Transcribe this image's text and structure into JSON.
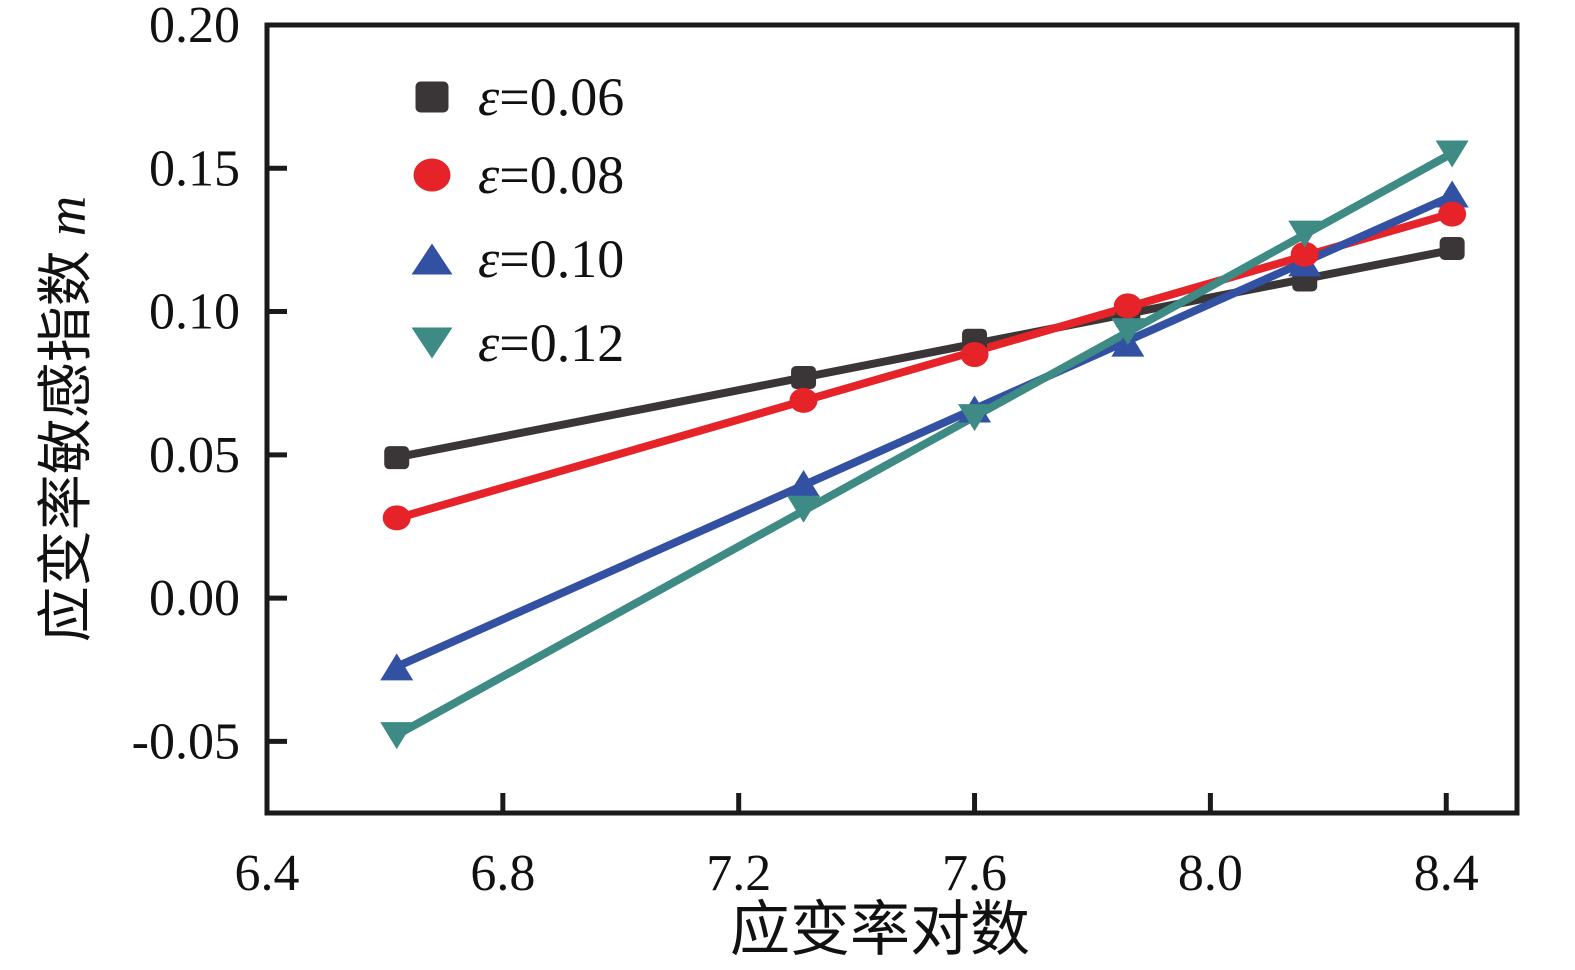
{
  "figure": {
    "background": "#ffffff",
    "axis_color": "#1a1a1a"
  },
  "chart_data": {
    "type": "scatter",
    "title": "",
    "xlabel": "应变率对数",
    "ylabel": "应变率敏感指数 m",
    "grid": false,
    "legend_position": "upper-left-inside",
    "xlim": [
      6.4,
      8.52
    ],
    "ylim": [
      -0.075,
      0.2
    ],
    "xticks": {
      "values": [
        6.4,
        6.8,
        7.2,
        7.6,
        8.0,
        8.4
      ],
      "labels": [
        "6.4",
        "6.8",
        "7.2",
        "7.6",
        "8.0",
        "8.4"
      ]
    },
    "yticks": {
      "values": [
        -0.05,
        0.0,
        0.05,
        0.1,
        0.15,
        0.2
      ],
      "labels": [
        "-0.05",
        "0.00",
        "0.05",
        "0.10",
        "0.15",
        "0.20"
      ]
    },
    "x": [
      6.62,
      7.31,
      7.6,
      7.86,
      8.16,
      8.41
    ],
    "series": [
      {
        "name": "ε=0.06",
        "marker": "square",
        "color": "#3a3637",
        "line": "linear-fit",
        "values": [
          0.049,
          0.077,
          0.09,
          0.098,
          0.111,
          0.122
        ]
      },
      {
        "name": "ε=0.08",
        "marker": "circle",
        "color": "#e62328",
        "line": "linear-fit",
        "values": [
          0.028,
          0.069,
          0.085,
          0.102,
          0.12,
          0.134
        ]
      },
      {
        "name": "ε=0.10",
        "marker": "triangle-up",
        "color": "#3351a3",
        "line": "linear-fit",
        "values": [
          -0.024,
          0.04,
          0.066,
          0.089,
          0.117,
          0.141
        ]
      },
      {
        "name": "ε=0.12",
        "marker": "triangle-down",
        "color": "#3d8b84",
        "line": "linear-fit",
        "values": [
          -0.048,
          0.031,
          0.063,
          0.093,
          0.127,
          0.155
        ]
      }
    ]
  }
}
